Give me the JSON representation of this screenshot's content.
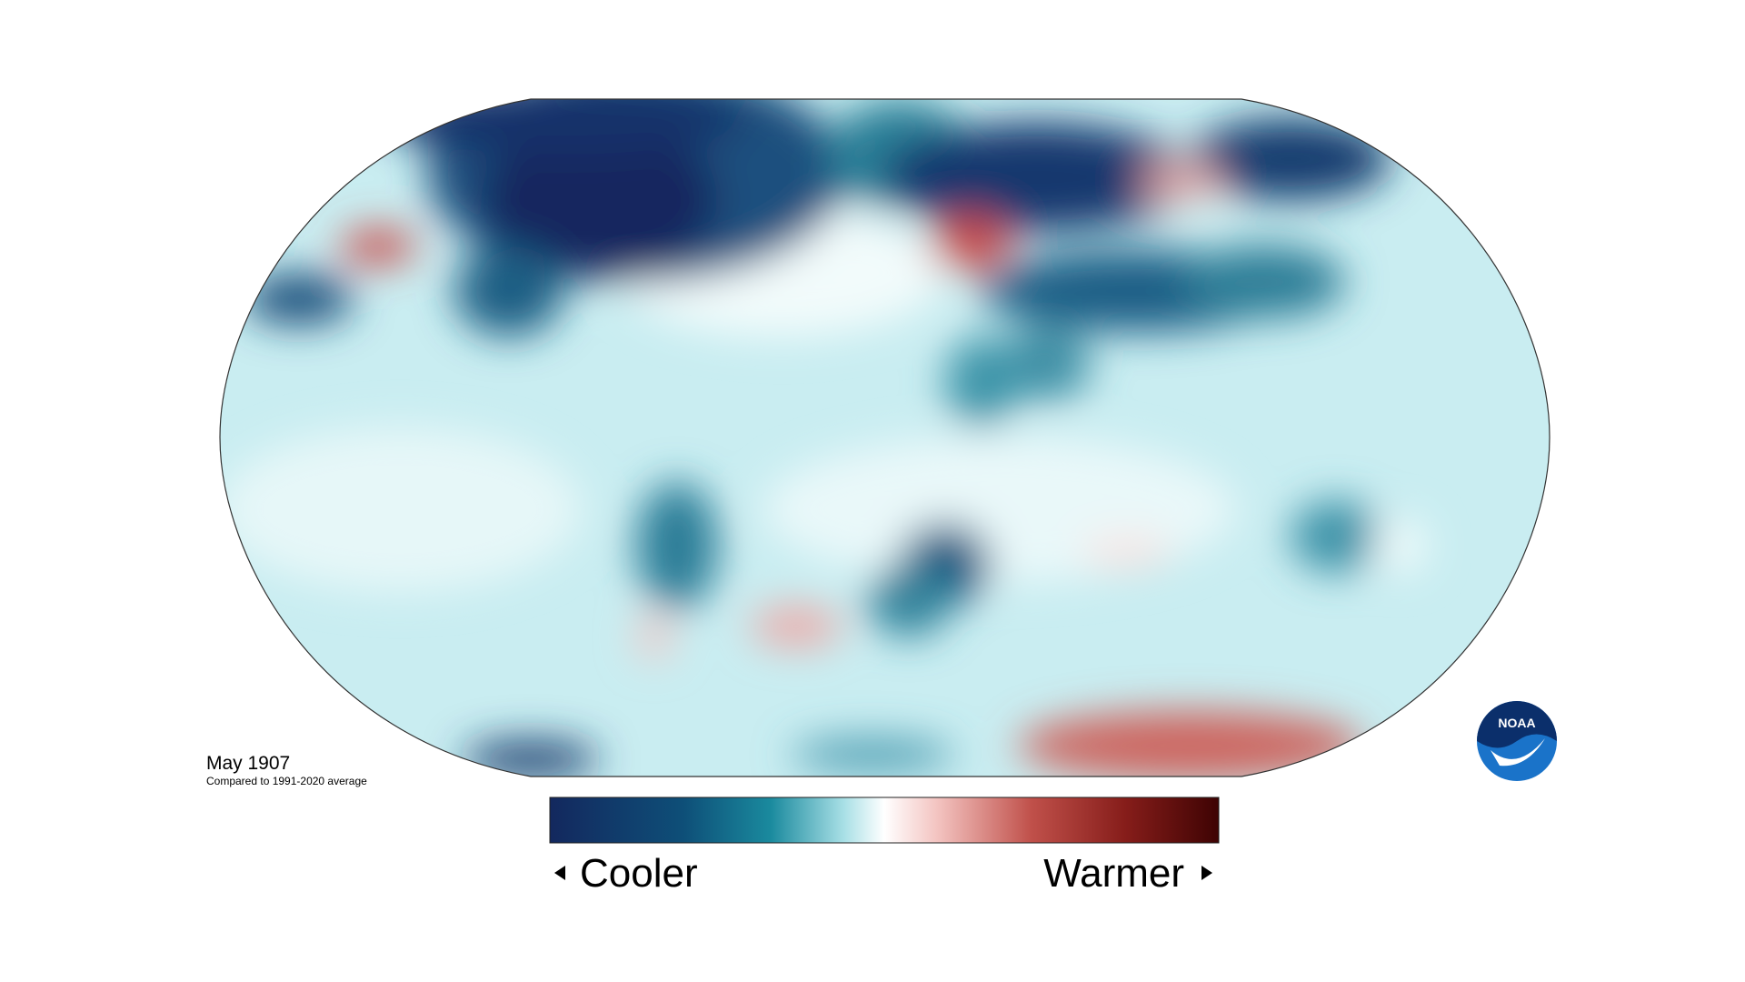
{
  "title": "May 1907",
  "subtitle": "Compared to 1991-2020 average",
  "legend": {
    "low_label": "Cooler",
    "high_label": "Warmer"
  },
  "logo": "NOAA"
}
